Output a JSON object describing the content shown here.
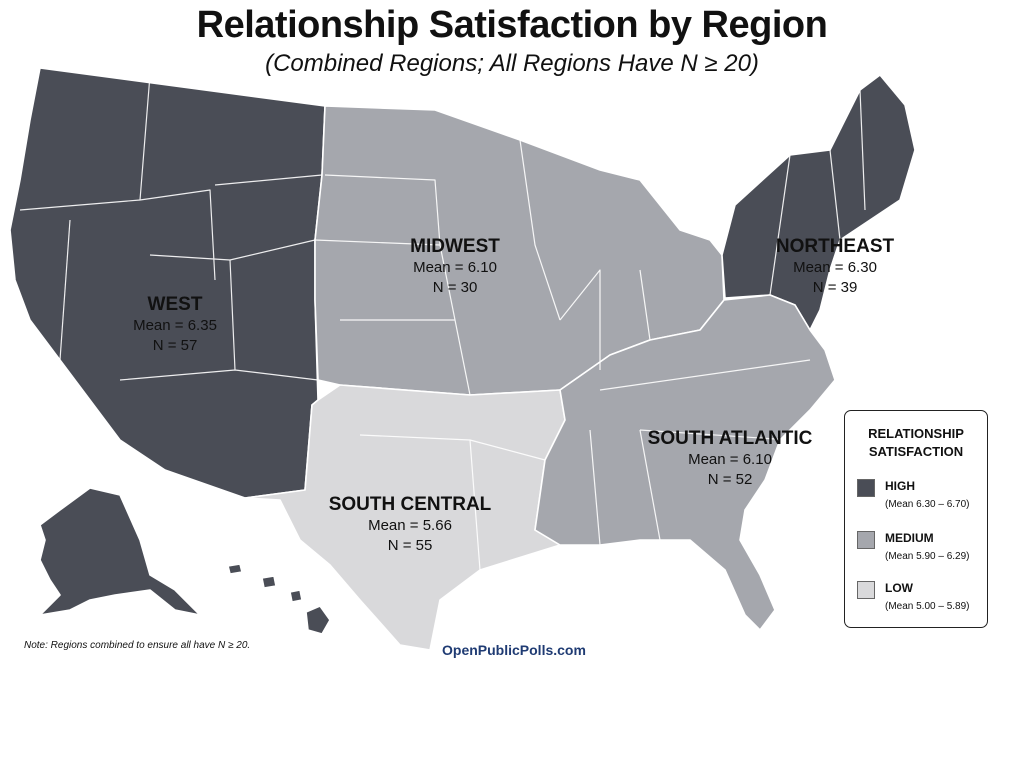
{
  "title": "Relationship Satisfaction by Region",
  "subtitle": "(Combined Regions; All Regions Have N ≥ 20)",
  "colors": {
    "high": "#4a4d56",
    "medium": "#a5a7ad",
    "low": "#d9d9db",
    "border": "#ffffff"
  },
  "regions": [
    {
      "name": "WEST",
      "mean": "Mean = 6.35",
      "n": "N = 57",
      "level": "high"
    },
    {
      "name": "MIDWEST",
      "mean": "Mean = 6.10",
      "n": "N = 30",
      "level": "medium"
    },
    {
      "name": "NORTHEAST",
      "mean": "Mean = 6.30",
      "n": "N = 39",
      "level": "high"
    },
    {
      "name": "SOUTH CENTRAL",
      "mean": "Mean = 5.66",
      "n": "N = 55",
      "level": "low"
    },
    {
      "name": "SOUTH ATLANTIC",
      "mean": "Mean = 6.10",
      "n": "N = 52",
      "level": "medium"
    }
  ],
  "legend": {
    "title_line1": "RELATIONSHIP",
    "title_line2": "SATISFACTION",
    "items": [
      {
        "label": "HIGH",
        "range": "(Mean 6.30 – 6.70)",
        "level": "high"
      },
      {
        "label": "MEDIUM",
        "range": "(Mean 5.90 – 6.29)",
        "level": "medium"
      },
      {
        "label": "LOW",
        "range": "(Mean 5.00 – 5.89)",
        "level": "low"
      }
    ]
  },
  "note": "Note: Regions combined to ensure all have N ≥ 20.",
  "source": "OpenPublicPolls.com"
}
